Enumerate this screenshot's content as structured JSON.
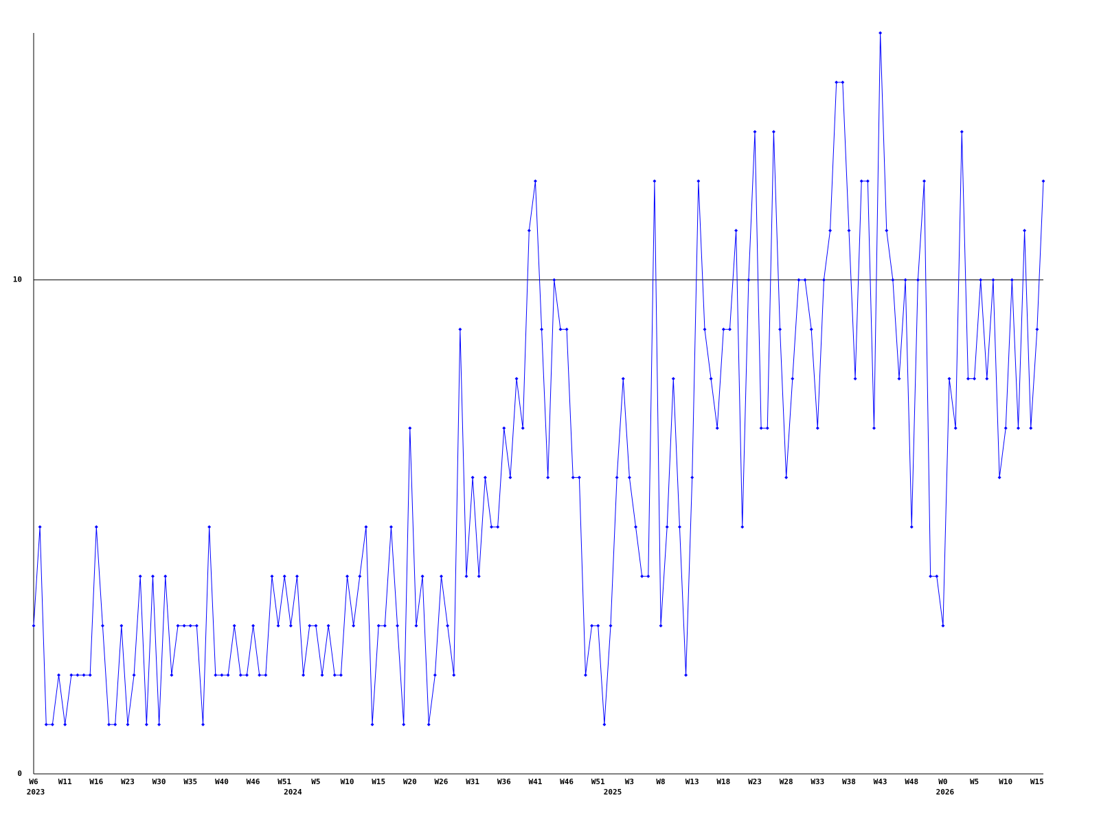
{
  "chart_data": {
    "type": "line",
    "categories": [
      "W6",
      null,
      null,
      null,
      null,
      "W11",
      null,
      null,
      null,
      null,
      "W16",
      null,
      null,
      null,
      null,
      "W23",
      null,
      null,
      null,
      null,
      "W30",
      null,
      null,
      null,
      null,
      "W35",
      null,
      null,
      null,
      null,
      "W40",
      null,
      null,
      null,
      null,
      "W46",
      null,
      null,
      null,
      null,
      "W51",
      null,
      null,
      null,
      null,
      "W5",
      null,
      null,
      null,
      null,
      "W10",
      null,
      null,
      null,
      null,
      "W15",
      null,
      null,
      null,
      null,
      "W20",
      null,
      null,
      null,
      null,
      "W26",
      null,
      null,
      null,
      null,
      "W31",
      null,
      null,
      null,
      null,
      "W36",
      null,
      null,
      null,
      null,
      "W41",
      null,
      null,
      null,
      null,
      "W46",
      null,
      null,
      null,
      null,
      "W51",
      null,
      null,
      null,
      null,
      "W3",
      null,
      null,
      null,
      null,
      "W8",
      null,
      null,
      null,
      null,
      "W13",
      null,
      null,
      null,
      null,
      "W18",
      null,
      null,
      null,
      null,
      "W23",
      null,
      null,
      null,
      null,
      "W28",
      null,
      null,
      null,
      null,
      "W33",
      null,
      null,
      null,
      null,
      "W38",
      null,
      null,
      null,
      null,
      "W43",
      null,
      null,
      null,
      null,
      "W48",
      null,
      null,
      null,
      null,
      "W0",
      null,
      null,
      null,
      null,
      "W5",
      null,
      null,
      null,
      null,
      "W10",
      null,
      null,
      null,
      null,
      "W15",
      null
    ],
    "category_years": [
      "2023",
      null,
      null,
      null,
      null,
      null,
      null,
      null,
      null,
      null,
      null,
      null,
      null,
      null,
      null,
      null,
      null,
      null,
      null,
      null,
      null,
      null,
      null,
      null,
      null,
      null,
      null,
      null,
      null,
      null,
      null,
      null,
      null,
      null,
      null,
      null,
      null,
      null,
      null,
      null,
      null,
      "2024",
      null,
      null,
      null,
      null,
      null,
      null,
      null,
      null,
      null,
      null,
      null,
      null,
      null,
      null,
      null,
      null,
      null,
      null,
      null,
      null,
      null,
      null,
      null,
      null,
      null,
      null,
      null,
      null,
      null,
      null,
      null,
      null,
      null,
      null,
      null,
      null,
      null,
      null,
      null,
      null,
      null,
      null,
      null,
      null,
      null,
      null,
      null,
      null,
      null,
      null,
      "2025",
      null,
      null,
      null,
      null,
      null,
      null,
      null,
      null,
      null,
      null,
      null,
      null,
      null,
      null,
      null,
      null,
      null,
      null,
      null,
      null,
      null,
      null,
      null,
      null,
      null,
      null,
      null,
      null,
      null,
      null,
      null,
      null,
      null,
      null,
      null,
      null,
      null,
      null,
      null,
      null,
      null,
      null,
      null,
      null,
      null,
      null,
      null,
      null,
      null,
      null,
      null,
      null,
      "2026",
      null,
      null,
      null,
      null,
      null,
      null,
      null,
      null,
      null,
      null,
      null,
      null,
      null,
      null,
      null,
      null
    ],
    "series": [
      {
        "color": "#0000ff",
        "values": [
          3,
          5,
          1,
          1,
          2,
          1,
          2,
          2,
          2,
          2,
          5,
          3,
          1,
          1,
          3,
          1,
          2,
          4,
          1,
          4,
          1,
          4,
          2,
          3,
          3,
          3,
          3,
          1,
          5,
          2,
          2,
          2,
          3,
          2,
          2,
          3,
          2,
          2,
          4,
          3,
          4,
          3,
          4,
          2,
          3,
          3,
          2,
          3,
          2,
          2,
          4,
          3,
          4,
          5,
          1,
          3,
          3,
          5,
          3,
          1,
          7,
          3,
          4,
          1,
          2,
          4,
          3,
          2,
          9,
          4,
          6,
          4,
          6,
          5,
          5,
          7,
          6,
          8,
          7,
          11,
          12,
          9,
          6,
          10,
          9,
          9,
          6,
          6,
          2,
          3,
          3,
          1,
          3,
          6,
          8,
          6,
          5,
          4,
          4,
          12,
          3,
          5,
          8,
          5,
          2,
          6,
          12,
          9,
          8,
          7,
          9,
          9,
          11,
          5,
          10,
          13,
          7,
          7,
          13,
          9,
          6,
          8,
          10,
          10,
          9,
          7,
          10,
          11,
          14,
          14,
          11,
          8,
          12,
          12,
          7,
          15,
          11,
          10,
          8,
          10,
          5,
          10,
          12,
          4,
          4,
          3,
          8,
          7,
          13,
          8,
          8,
          10,
          8,
          10,
          6,
          7,
          10,
          7,
          11,
          7,
          9,
          12
        ]
      }
    ],
    "ylim": [
      0,
      15
    ],
    "yticks": [
      0,
      10
    ],
    "grid": true
  }
}
